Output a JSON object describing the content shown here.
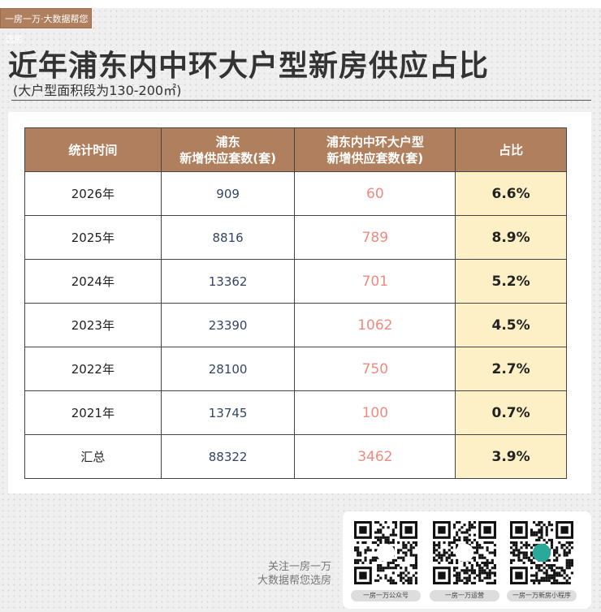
{
  "brand_tag": "一房一万·大数据帮您选房",
  "title": "近年浦东内中环大户型新房供应占比",
  "subtitle": "(大户型面积段为130-200㎡)",
  "table": {
    "headers": [
      "统计时间",
      "浦东\n新增供应套数(套)",
      "浦东内中环大户型\n新增供应套数(套)",
      "占比"
    ],
    "rows": [
      [
        "2026年",
        "909",
        "60",
        "6.6%"
      ],
      [
        "2025年",
        "8816",
        "789",
        "8.9%"
      ],
      [
        "2024年",
        "13362",
        "701",
        "5.2%"
      ],
      [
        "2023年",
        "23390",
        "1062",
        "4.5%"
      ],
      [
        "2022年",
        "28100",
        "750",
        "2.7%"
      ],
      [
        "2021年",
        "13745",
        "100",
        "0.7%"
      ],
      [
        "汇总",
        "88322",
        "3462",
        "3.9%"
      ]
    ]
  },
  "footer": {
    "follow_line1": "关注一房一万",
    "follow_line2": "大数据帮您选房",
    "qr_codes": [
      {
        "label": "一房一万公众号",
        "icon": "logo-icon"
      },
      {
        "label": "一房一万运营",
        "icon": "wechat-icon"
      },
      {
        "label": "一房一万新房小程序",
        "icon": "mini-program-icon"
      }
    ]
  },
  "colors": {
    "header": "#b07f5e",
    "highlight": "#fdf0c6",
    "salmon": "#f08a80"
  }
}
